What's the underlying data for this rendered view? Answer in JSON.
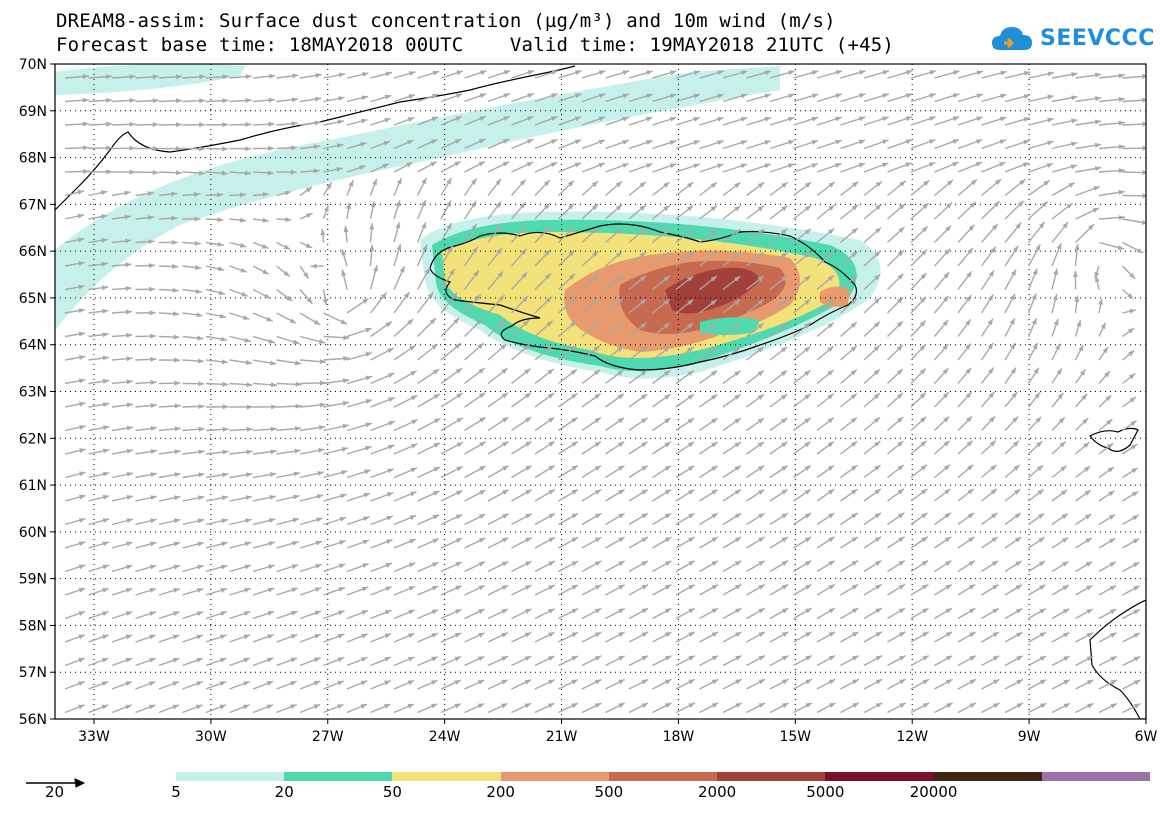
{
  "header": {
    "title_line1": "DREAM8-assim: Surface dust concentration (µg/m³) and 10m wind (m/s)",
    "title_line2": "Forecast base time: 18MAY2018 00UTC    Valid time: 19MAY2018 21UTC (+45)"
  },
  "logo": {
    "text": "SEEVCCC",
    "icon": "cloud-icon",
    "color": "#1e8fd8"
  },
  "map": {
    "region": "Iceland and surrounding North Atlantic",
    "lat_labels": [
      "70N",
      "69N",
      "68N",
      "67N",
      "66N",
      "65N",
      "64N",
      "63N",
      "62N",
      "61N",
      "60N",
      "59N",
      "58N",
      "57N",
      "56N"
    ],
    "lon_labels": [
      "33W",
      "30W",
      "27W",
      "24W",
      "21W",
      "18W",
      "15W",
      "12W",
      "9W",
      "6W"
    ],
    "lat_range": [
      56,
      70
    ],
    "lon_range": [
      -34,
      -6
    ],
    "grid": "dotted",
    "vector_color": "#a8a8a8",
    "coast_color": "#000000"
  },
  "colorbar": {
    "levels": [
      "5",
      "20",
      "50",
      "200",
      "500",
      "2000",
      "5000",
      "20000"
    ],
    "colors": [
      "#c6f1ea",
      "#4fd9ae",
      "#f3e27a",
      "#e89a6c",
      "#c86a4f",
      "#a3403a",
      "#7a1128",
      "#3e2614",
      "#9b73a8"
    ]
  },
  "wind_reference": {
    "value": "20",
    "icon": "arrow-icon"
  }
}
